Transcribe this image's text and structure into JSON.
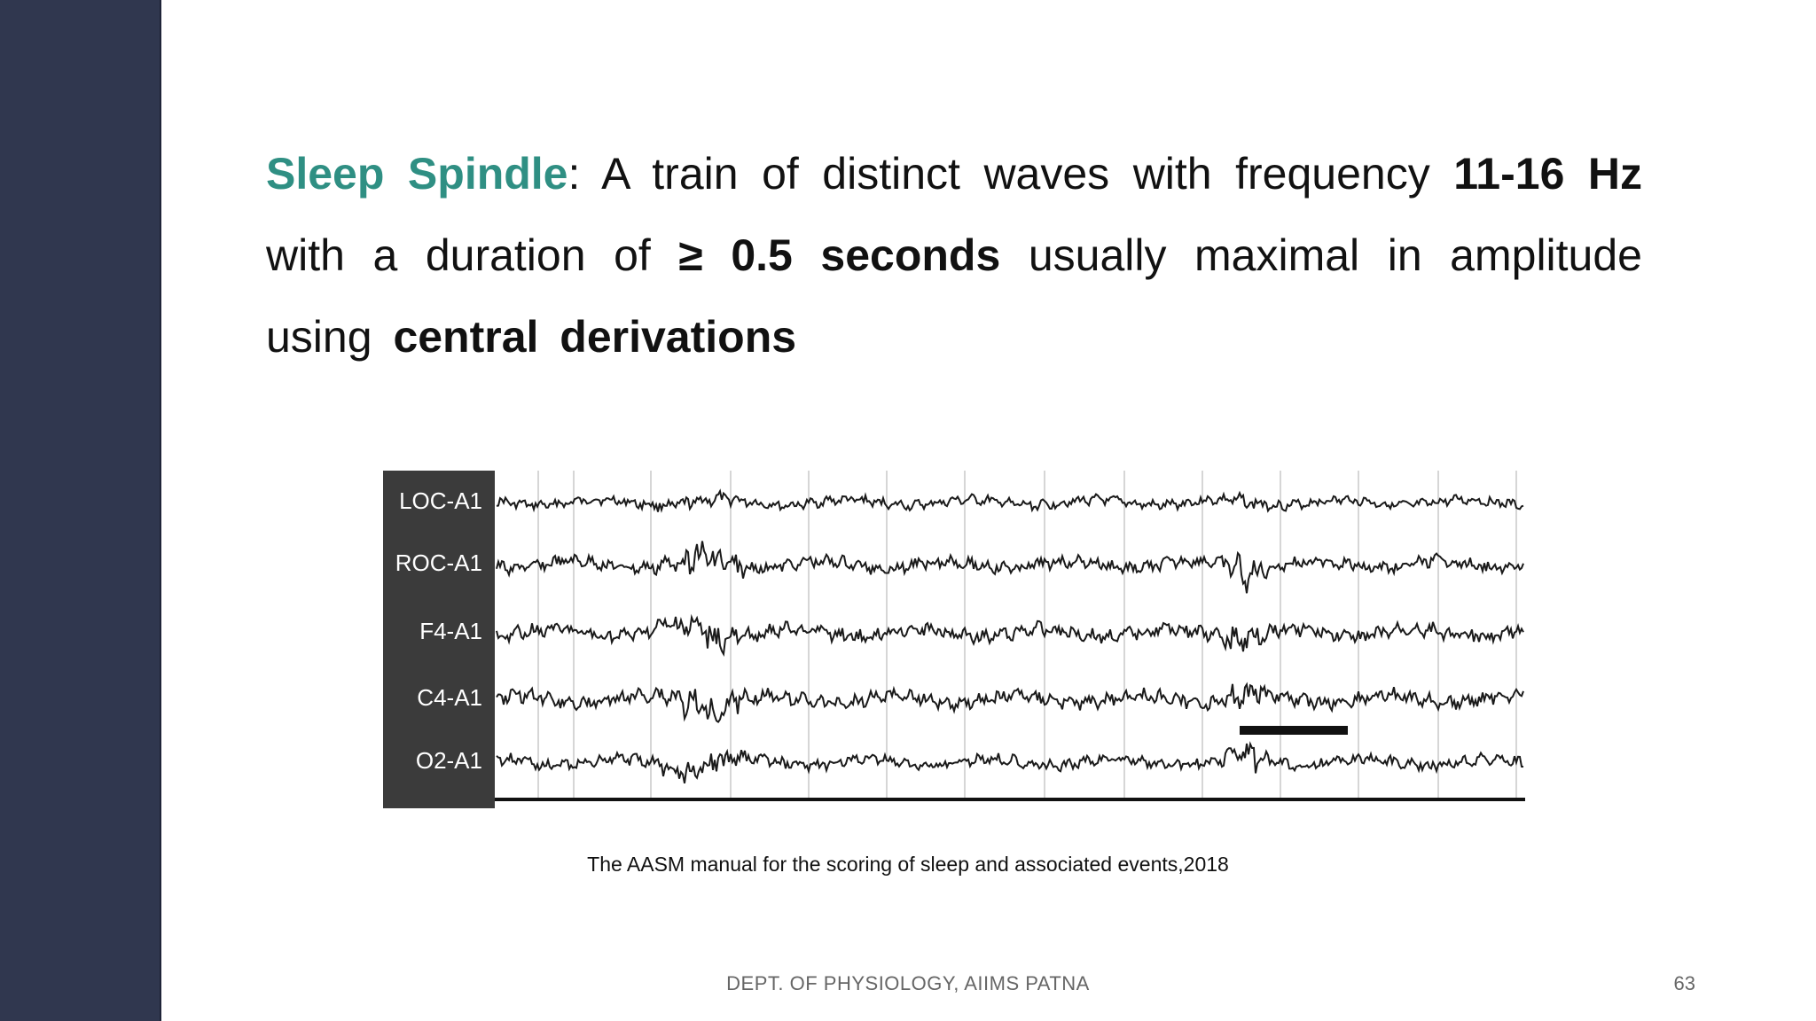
{
  "definition": {
    "term": "Sleep Spindle",
    "colon": ":",
    "text_1": " A train of distinct waves with frequency ",
    "bold_1": "11-16 Hz",
    "text_2": " with  a duration of ",
    "bold_2": "≥ 0.5 seconds",
    "text_3": " usually maximal in amplitude using ",
    "bold_3": "central derivations"
  },
  "figure": {
    "channels": [
      "LOC-A1",
      "ROC-A1",
      "F4-A1",
      "C4-A1",
      "O2-A1"
    ]
  },
  "caption": "The AASM manual for the scoring of sleep and associated events,2018",
  "footer": "DEPT. OF PHYSIOLOGY, AIIMS PATNA",
  "page_number": "63",
  "colors": {
    "sidebar": "#30374f",
    "term": "#2f8f83",
    "label_panel": "#3b3b3b"
  }
}
